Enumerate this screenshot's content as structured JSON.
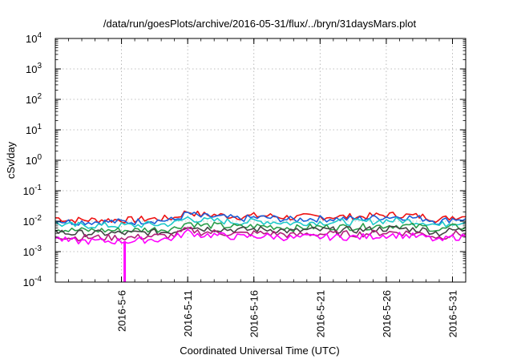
{
  "chart_data": {
    "type": "line",
    "title": "/data/run/goesPlots/archive/2016-05-31/flux/../bryn/31daysMars.plot",
    "xlabel": "Coordinated Universal Time (UTC)",
    "ylabel": "cSv/day",
    "yscale": "log",
    "ylim": [
      0.0001,
      10000
    ],
    "y_ticks": [
      {
        "exp": "-4",
        "value": 0.0001
      },
      {
        "exp": "-3",
        "value": 0.001
      },
      {
        "exp": "-2",
        "value": 0.01
      },
      {
        "exp": "-1",
        "value": 0.1
      },
      {
        "exp": "0",
        "value": 1
      },
      {
        "exp": "1",
        "value": 10
      },
      {
        "exp": "2",
        "value": 100
      },
      {
        "exp": "3",
        "value": 1000
      },
      {
        "exp": "4",
        "value": 10000
      }
    ],
    "y_tick_base": "10",
    "xlim": [
      "2016-05-01",
      "2016-06-01"
    ],
    "x_ticks": [
      "2016-5-6",
      "2016-5-11",
      "2016-5-16",
      "2016-5-21",
      "2016-5-26",
      "2016-5-31"
    ],
    "x_tick_dates": [
      "2016-05-06",
      "2016-05-11",
      "2016-05-16",
      "2016-05-21",
      "2016-05-26",
      "2016-05-31"
    ],
    "grid": true,
    "legend": "none",
    "x": [
      "2016-05-01",
      "2016-05-02",
      "2016-05-03",
      "2016-05-04",
      "2016-05-05",
      "2016-05-06",
      "2016-05-07",
      "2016-05-08",
      "2016-05-09",
      "2016-05-10",
      "2016-05-11",
      "2016-05-12",
      "2016-05-13",
      "2016-05-14",
      "2016-05-15",
      "2016-05-16",
      "2016-05-17",
      "2016-05-18",
      "2016-05-19",
      "2016-05-20",
      "2016-05-21",
      "2016-05-22",
      "2016-05-23",
      "2016-05-24",
      "2016-05-25",
      "2016-05-26",
      "2016-05-27",
      "2016-05-28",
      "2016-05-29",
      "2016-05-30",
      "2016-05-31",
      "2016-06-01"
    ],
    "series": [
      {
        "color": "#ee1111",
        "values": [
          0.013,
          0.011,
          0.011,
          0.011,
          0.011,
          0.011,
          0.011,
          0.012,
          0.012,
          0.013,
          0.021,
          0.016,
          0.016,
          0.015,
          0.014,
          0.015,
          0.015,
          0.014,
          0.013,
          0.014,
          0.014,
          0.014,
          0.014,
          0.014,
          0.015,
          0.016,
          0.016,
          0.015,
          0.014,
          0.011,
          0.014,
          0.014
        ]
      },
      {
        "color": "#1a5fd8",
        "values": [
          0.011,
          0.0095,
          0.0095,
          0.0095,
          0.0095,
          0.0095,
          0.0095,
          0.0105,
          0.0105,
          0.011,
          0.018,
          0.014,
          0.014,
          0.013,
          0.012,
          0.013,
          0.013,
          0.012,
          0.011,
          0.012,
          0.012,
          0.012,
          0.012,
          0.012,
          0.013,
          0.014,
          0.014,
          0.013,
          0.012,
          0.0095,
          0.012,
          0.012
        ]
      },
      {
        "color": "#1ec9c9",
        "values": [
          0.0085,
          0.0072,
          0.0072,
          0.0072,
          0.0072,
          0.0072,
          0.0072,
          0.0078,
          0.0078,
          0.0085,
          0.013,
          0.0105,
          0.0105,
          0.0098,
          0.0092,
          0.0098,
          0.0098,
          0.0092,
          0.0085,
          0.0092,
          0.0092,
          0.0092,
          0.0092,
          0.0092,
          0.0098,
          0.0105,
          0.0105,
          0.0098,
          0.0092,
          0.0072,
          0.0092,
          0.0092
        ]
      },
      {
        "color": "#2a9d4a",
        "values": [
          0.0058,
          0.005,
          0.005,
          0.005,
          0.005,
          0.005,
          0.005,
          0.0054,
          0.0054,
          0.0058,
          0.009,
          0.0072,
          0.0072,
          0.0068,
          0.0064,
          0.0068,
          0.0068,
          0.0064,
          0.0058,
          0.0064,
          0.0064,
          0.0064,
          0.0064,
          0.0064,
          0.0068,
          0.0072,
          0.0072,
          0.0068,
          0.0064,
          0.005,
          0.0064,
          0.0064
        ]
      },
      {
        "color": "#444444",
        "values": [
          0.0046,
          0.004,
          0.004,
          0.004,
          0.004,
          0.004,
          0.004,
          0.0043,
          0.0043,
          0.0046,
          0.0072,
          0.0057,
          0.0057,
          0.0054,
          0.0051,
          0.0054,
          0.0054,
          0.0051,
          0.0046,
          0.0051,
          0.0051,
          0.0051,
          0.0051,
          0.0051,
          0.0054,
          0.0057,
          0.0057,
          0.0054,
          0.0051,
          0.004,
          0.0051,
          0.0051
        ]
      },
      {
        "color": "#b0207a",
        "values": [
          0.0034,
          0.0029,
          0.0029,
          0.0029,
          0.0029,
          0.0029,
          0.0029,
          0.0032,
          0.0032,
          0.0034,
          0.0054,
          0.0043,
          0.0043,
          0.004,
          0.0038,
          0.004,
          0.004,
          0.0038,
          0.0034,
          0.0038,
          0.0038,
          0.0038,
          0.0038,
          0.0038,
          0.004,
          0.0043,
          0.0043,
          0.004,
          0.0038,
          0.0029,
          0.0038,
          0.0038
        ]
      },
      {
        "color": "#ff00ff",
        "values": [
          0.0028,
          0.0022,
          0.0022,
          0.0022,
          0.0022,
          0.0022,
          0.0022,
          0.0025,
          0.0025,
          0.0028,
          0.0045,
          0.0035,
          0.0035,
          0.0032,
          0.003,
          0.0032,
          0.0032,
          0.003,
          0.0028,
          0.003,
          0.003,
          0.003,
          0.003,
          0.003,
          0.0032,
          0.0035,
          0.0035,
          0.0032,
          0.003,
          0.0022,
          0.003,
          0.003
        ]
      }
    ],
    "spike": {
      "color": "#ff00ff",
      "x": "2016-05-06",
      "value": 0.0001
    }
  }
}
